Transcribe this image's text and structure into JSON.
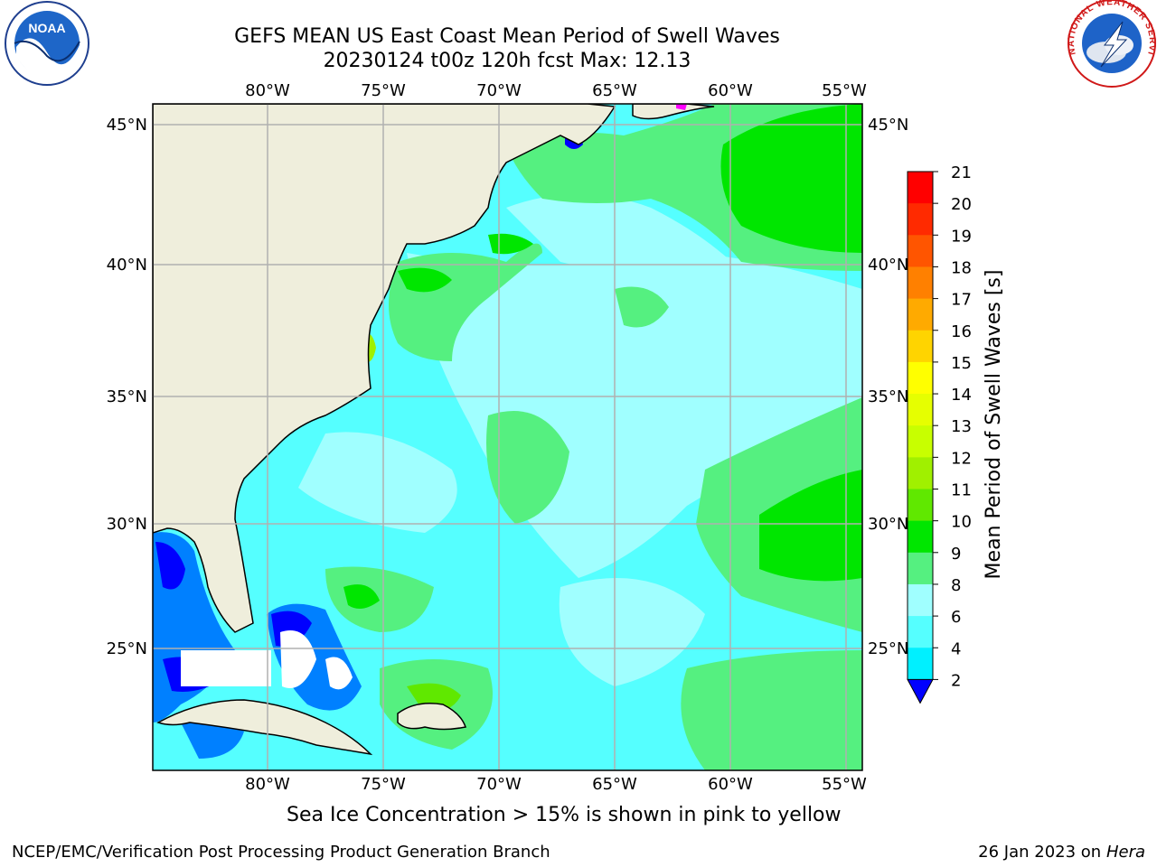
{
  "title": {
    "line1": "GEFS MEAN US East Coast Mean Period of Swell Waves",
    "line2": "20230124 t00z 120h fcst   Max: 12.13"
  },
  "map": {
    "lon_ticks": [
      "80°W",
      "75°W",
      "70°W",
      "65°W",
      "60°W",
      "55°W"
    ],
    "lat_ticks": [
      "45°N",
      "40°N",
      "35°N",
      "30°N",
      "25°N"
    ],
    "colors": {
      "land": "#efeedc",
      "coast": "#000000",
      "grid": "#b0b0b0",
      "sea_ice": "#ff00ff"
    }
  },
  "colorbar": {
    "label": "Mean Period of Swell Waves [s]",
    "ticks": [
      "21",
      "20",
      "19",
      "18",
      "17",
      "16",
      "15",
      "14",
      "13",
      "12",
      "11",
      "10",
      "9",
      "8",
      "6",
      "4",
      "2"
    ],
    "colors": [
      "#ff0000",
      "#ff2a00",
      "#ff5500",
      "#ff8000",
      "#ffaa00",
      "#ffd400",
      "#ffff00",
      "#e6ff00",
      "#c8ff00",
      "#a0f000",
      "#60e800",
      "#00e600",
      "#55f080",
      "#a0ffff",
      "#55ffff",
      "#00f0ff",
      "#0080ff"
    ],
    "under_color": "#0000ff"
  },
  "logos": {
    "noaa": "NOAA",
    "nws": "NATIONAL WEATHER SERVICE"
  },
  "captions": {
    "ice": "Sea Ice Concentration > 15% is shown in pink to yellow",
    "footer_left": "NCEP/EMC/Verification Post Processing Product Generation Branch",
    "footer_date": "26 Jan 2023 on ",
    "footer_machine": "Hera"
  }
}
